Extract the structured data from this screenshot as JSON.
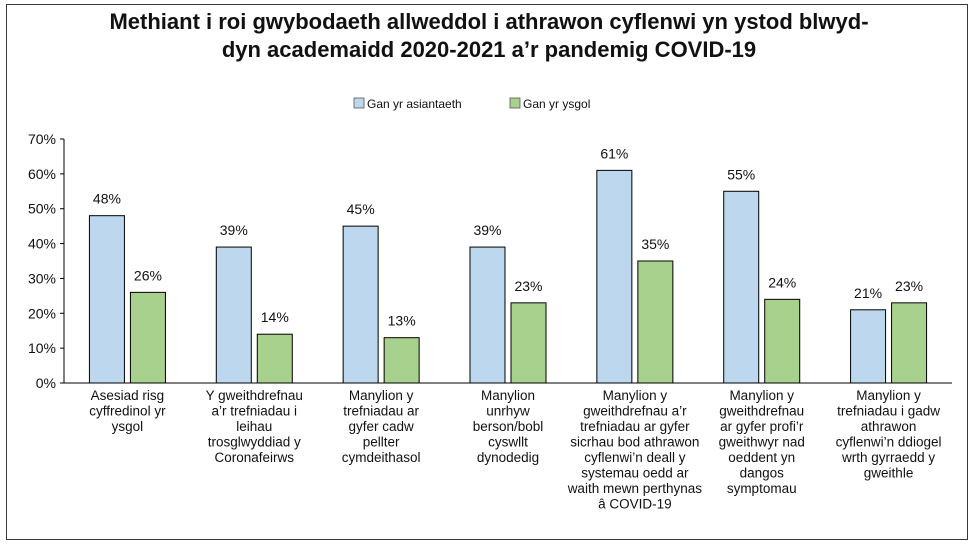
{
  "title_lines": [
    "Methiant i roi gwybodaeth allweddol i athrawon cyflenwi yn ystod blwyd-",
    "dyn academaidd 2020-2021 a’r pandemig COVID-19"
  ],
  "chart_data": {
    "type": "bar",
    "title": "Methiant i roi gwybodaeth allweddol i athrawon cyflenwi yn ystod blwyddyn academaidd 2020-2021 a’r pandemig COVID-19",
    "categories": [
      "Asesiad risg cyffredinol yr ysgol",
      "Y gweithdrefnau a’r trefniadau i leihau trosglwyddiad y Coronafeirws",
      "Manylion y trefniadau ar gyfer cadw pellter cymdeithasol",
      "Manylion unrhyw berson/bobl cyswllt dynodedig",
      "Manylion y gweithdrefnau a’r trefniadau ar gyfer sicrhau bod athrawon cyflenwi’n deall y systemau oedd ar waith mewn perthynas â COVID-19",
      "Manylion y gweithdrefnau ar gyfer profi’r gweithwyr nad oeddent yn dangos symptomau",
      "Manylion y trefniadau i gadw athrawon cyflenwi’n ddiogel wrth gyrraedd y gweithle"
    ],
    "category_lines": [
      [
        "Asesiad risg",
        "cyffredinol yr",
        "ysgol"
      ],
      [
        "Y gweithdrefnau",
        "a’r trefniadau i",
        "leihau",
        "trosglwyddiad y",
        "Coronafeirws"
      ],
      [
        "Manylion y",
        "trefniadau ar",
        "gyfer cadw",
        "pellter",
        "cymdeithasol"
      ],
      [
        "Manylion",
        "unrhyw",
        "berson/bobl",
        "cyswllt",
        "dynodedig"
      ],
      [
        "Manylion y",
        "gweithdrefnau a’r",
        "trefniadau ar gyfer",
        "sicrhau bod athrawon",
        "cyflenwi’n deall y",
        "systemau oedd ar",
        "waith mewn perthynas",
        "â COVID-19"
      ],
      [
        "Manylion y",
        "gweithdrefnau",
        "ar gyfer profi’r",
        "gweithwyr nad",
        "oeddent yn",
        "dangos",
        "symptomau"
      ],
      [
        "Manylion y",
        "trefniadau i gadw",
        "athrawon",
        "cyflenwi’n ddiogel",
        "wrth gyrraedd y",
        "gweithle"
      ]
    ],
    "series": [
      {
        "name": "Gan yr asiantaeth",
        "color": "#bdd7ee",
        "values": [
          48,
          39,
          45,
          39,
          61,
          55,
          21
        ],
        "labels": [
          "48%",
          "39%",
          "45%",
          "39%",
          "61%",
          "55%",
          "21%"
        ]
      },
      {
        "name": "Gan yr ysgol",
        "color": "#a9d18e",
        "values": [
          26,
          14,
          13,
          23,
          35,
          24,
          23
        ],
        "labels": [
          "26%",
          "14%",
          "13%",
          "23%",
          "35%",
          "24%",
          "23%"
        ]
      }
    ],
    "ylim": [
      0,
      70
    ],
    "yticks": [
      0,
      10,
      20,
      30,
      40,
      50,
      60,
      70
    ],
    "ytick_labels": [
      "0%",
      "10%",
      "20%",
      "30%",
      "40%",
      "50%",
      "60%",
      "70%"
    ],
    "xlabel": "",
    "ylabel": "",
    "legend_position": "top-center",
    "grid": false,
    "bar_outline_color": "#000000"
  }
}
